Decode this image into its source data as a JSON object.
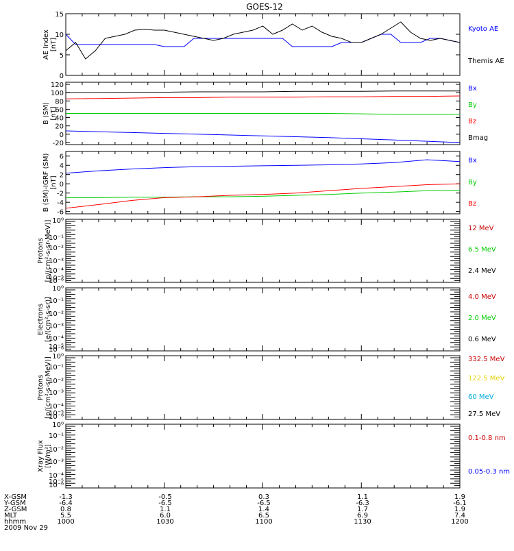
{
  "title": "GOES-12",
  "footer": {
    "row_labels": [
      "X-GSM",
      "Y-GSM",
      "Z-GSM",
      "MLT",
      "hhmm",
      "2009 Nov 29"
    ],
    "columns": [
      [
        "-1.3",
        "-6.4",
        "0.8",
        "5.5",
        "1000"
      ],
      [
        "-0.5",
        "-6.5",
        "1.1",
        "6.0",
        "1030"
      ],
      [
        "0.3",
        "-6.5",
        "1.4",
        "6.5",
        "1100"
      ],
      [
        "1.1",
        "-6.3",
        "1.7",
        "6.9",
        "1130"
      ],
      [
        "1.9",
        "-6.1",
        "1.9",
        "7.4",
        "1200"
      ]
    ]
  },
  "chart_data": [
    {
      "type": "line",
      "ylabel": [
        "AE Index",
        "[nT]"
      ],
      "ylim": [
        0,
        15
      ],
      "yticks": [
        "0",
        "5",
        "10",
        "15"
      ],
      "x": [
        0,
        3,
        6,
        9,
        12,
        15,
        18,
        21,
        24,
        27,
        30,
        33,
        36,
        39,
        42,
        45,
        48,
        51,
        54,
        57,
        60,
        63,
        66,
        69,
        72,
        75,
        78,
        81,
        84,
        87,
        90,
        93,
        96,
        99,
        102,
        105,
        108,
        111,
        114,
        117,
        120
      ],
      "series": [
        {
          "name": "Kyoto AE",
          "color": "#0000ff",
          "values": [
            10,
            7.5,
            7.5,
            7.5,
            7.5,
            7.5,
            7.5,
            7.5,
            7.5,
            7.5,
            7,
            7,
            7,
            9,
            9,
            9,
            9,
            9,
            9,
            9,
            9,
            9,
            9,
            7,
            7,
            7,
            7,
            7,
            8,
            8,
            8,
            9,
            10,
            10,
            8,
            8,
            8,
            9,
            9,
            8.5,
            8
          ]
        },
        {
          "name": "Themis AE",
          "color": "#000000",
          "values": [
            6,
            8,
            4,
            6,
            9,
            9.5,
            10,
            11,
            11.2,
            11,
            11,
            10.5,
            10,
            9.5,
            9,
            8.5,
            9,
            10,
            10.5,
            11,
            12,
            10,
            11,
            12.5,
            11,
            12,
            10.5,
            9.5,
            9,
            8,
            8,
            9,
            10,
            11.5,
            13,
            10.5,
            9,
            8.5,
            9,
            8.5,
            8
          ]
        }
      ]
    },
    {
      "type": "line",
      "ylabel": [
        "B (SM)",
        "[nT]"
      ],
      "ylim": [
        -25,
        125
      ],
      "yticks": [
        "-20",
        "0",
        "20",
        "40",
        "60",
        "80",
        "100",
        "120"
      ],
      "x": [
        0,
        10,
        20,
        30,
        40,
        50,
        60,
        70,
        80,
        90,
        100,
        110,
        120
      ],
      "series": [
        {
          "name": "Bx",
          "color": "#0000ff",
          "values": [
            8,
            6,
            4,
            2,
            0,
            -2,
            -4,
            -6,
            -8,
            -11,
            -14,
            -17,
            -20
          ]
        },
        {
          "name": "By",
          "color": "#00cc00",
          "values": [
            50,
            50,
            50,
            50,
            50,
            50,
            50,
            50,
            50,
            49,
            48,
            48,
            48
          ]
        },
        {
          "name": "Bz",
          "color": "#ff0000",
          "values": [
            85,
            86,
            87,
            88,
            88,
            89,
            89,
            89,
            90,
            90,
            91,
            91,
            92
          ]
        },
        {
          "name": "Bmag",
          "color": "#000000",
          "values": [
            100,
            100,
            101,
            101,
            102,
            102,
            102,
            103,
            103,
            103,
            104,
            104,
            104
          ]
        }
      ]
    },
    {
      "type": "line",
      "ylabel": [
        "B (SM)-IGRF (SM)",
        "[nT]"
      ],
      "ylim": [
        -6.5,
        7
      ],
      "yticks": [
        "-6",
        "-4",
        "-2",
        "0",
        "2",
        "4",
        "6"
      ],
      "x": [
        0,
        10,
        20,
        30,
        40,
        50,
        60,
        70,
        80,
        90,
        100,
        110,
        120
      ],
      "series": [
        {
          "name": "Bx",
          "color": "#0000ff",
          "values": [
            2.3,
            2.8,
            3.2,
            3.5,
            3.7,
            3.8,
            3.9,
            4.0,
            4.1,
            4.3,
            4.6,
            5.2,
            4.8
          ]
        },
        {
          "name": "By",
          "color": "#00cc00",
          "values": [
            -3.0,
            -3.0,
            -2.9,
            -2.9,
            -2.8,
            -2.8,
            -2.7,
            -2.5,
            -2.3,
            -2.0,
            -1.8,
            -1.5,
            -1.4
          ]
        },
        {
          "name": "Bz",
          "color": "#ff0000",
          "values": [
            -5.3,
            -4.5,
            -3.6,
            -3.0,
            -2.8,
            -2.5,
            -2.3,
            -2.0,
            -1.5,
            -1.0,
            -0.6,
            -0.2,
            0.0
          ]
        }
      ]
    },
    {
      "type": "line",
      "ylabel": [
        "Protons",
        "[p/(cm²-s-sr-MeV)]"
      ],
      "scale": "log",
      "yticks": [
        "10⁰",
        "10⁻¹",
        "10⁻²",
        "10⁻³",
        "10⁻⁴",
        "10⁻⁵",
        "10⁻⁶"
      ],
      "series": [
        {
          "name": "12 MeV",
          "color": "#cc0000",
          "values": []
        },
        {
          "name": "6.5 MeV",
          "color": "#00cc00",
          "values": []
        },
        {
          "name": "2.4 MeV",
          "color": "#000000",
          "values": []
        }
      ]
    },
    {
      "type": "line",
      "ylabel": [
        "Electrons",
        "[e/(cm²-s-sr)]"
      ],
      "scale": "log",
      "yticks": [
        "10⁰",
        "10⁻¹",
        "10⁻²",
        "10⁻³",
        "10⁻⁴",
        "10⁻⁵",
        "10⁻⁶"
      ],
      "series": [
        {
          "name": "4.0 MeV",
          "color": "#cc0000",
          "values": []
        },
        {
          "name": "2.0 MeV",
          "color": "#00cc00",
          "values": []
        },
        {
          "name": "0.6 MeV",
          "color": "#000000",
          "values": []
        }
      ]
    },
    {
      "type": "line",
      "ylabel": [
        "Protons",
        "[p/(cm²-s-sr-MeV)]"
      ],
      "scale": "log",
      "yticks": [
        "10⁰",
        "10⁻¹",
        "10⁻²",
        "10⁻³",
        "10⁻⁴",
        "10⁻⁵",
        "10⁻⁶"
      ],
      "series": [
        {
          "name": "332.5 MeV",
          "color": "#cc0000",
          "values": []
        },
        {
          "name": "122.5 MeV",
          "color": "#e6d200",
          "values": []
        },
        {
          "name": "60 MeV",
          "color": "#00aadd",
          "values": []
        },
        {
          "name": "27.5 MeV",
          "color": "#000000",
          "values": []
        }
      ]
    },
    {
      "type": "line",
      "ylabel": [
        "Xray Flux",
        "[W/m²]"
      ],
      "scale": "log",
      "yticks": [
        "10⁰",
        "10⁻¹",
        "10⁻²",
        "10⁻³",
        "10⁻⁴",
        "10⁻⁵",
        "10⁻⁶"
      ],
      "series": [
        {
          "name": "0.1-0.8 nm",
          "color": "#cc0000",
          "values": []
        },
        {
          "name": "0.05-0.3 nm",
          "color": "#0000ff",
          "values": []
        }
      ]
    }
  ]
}
